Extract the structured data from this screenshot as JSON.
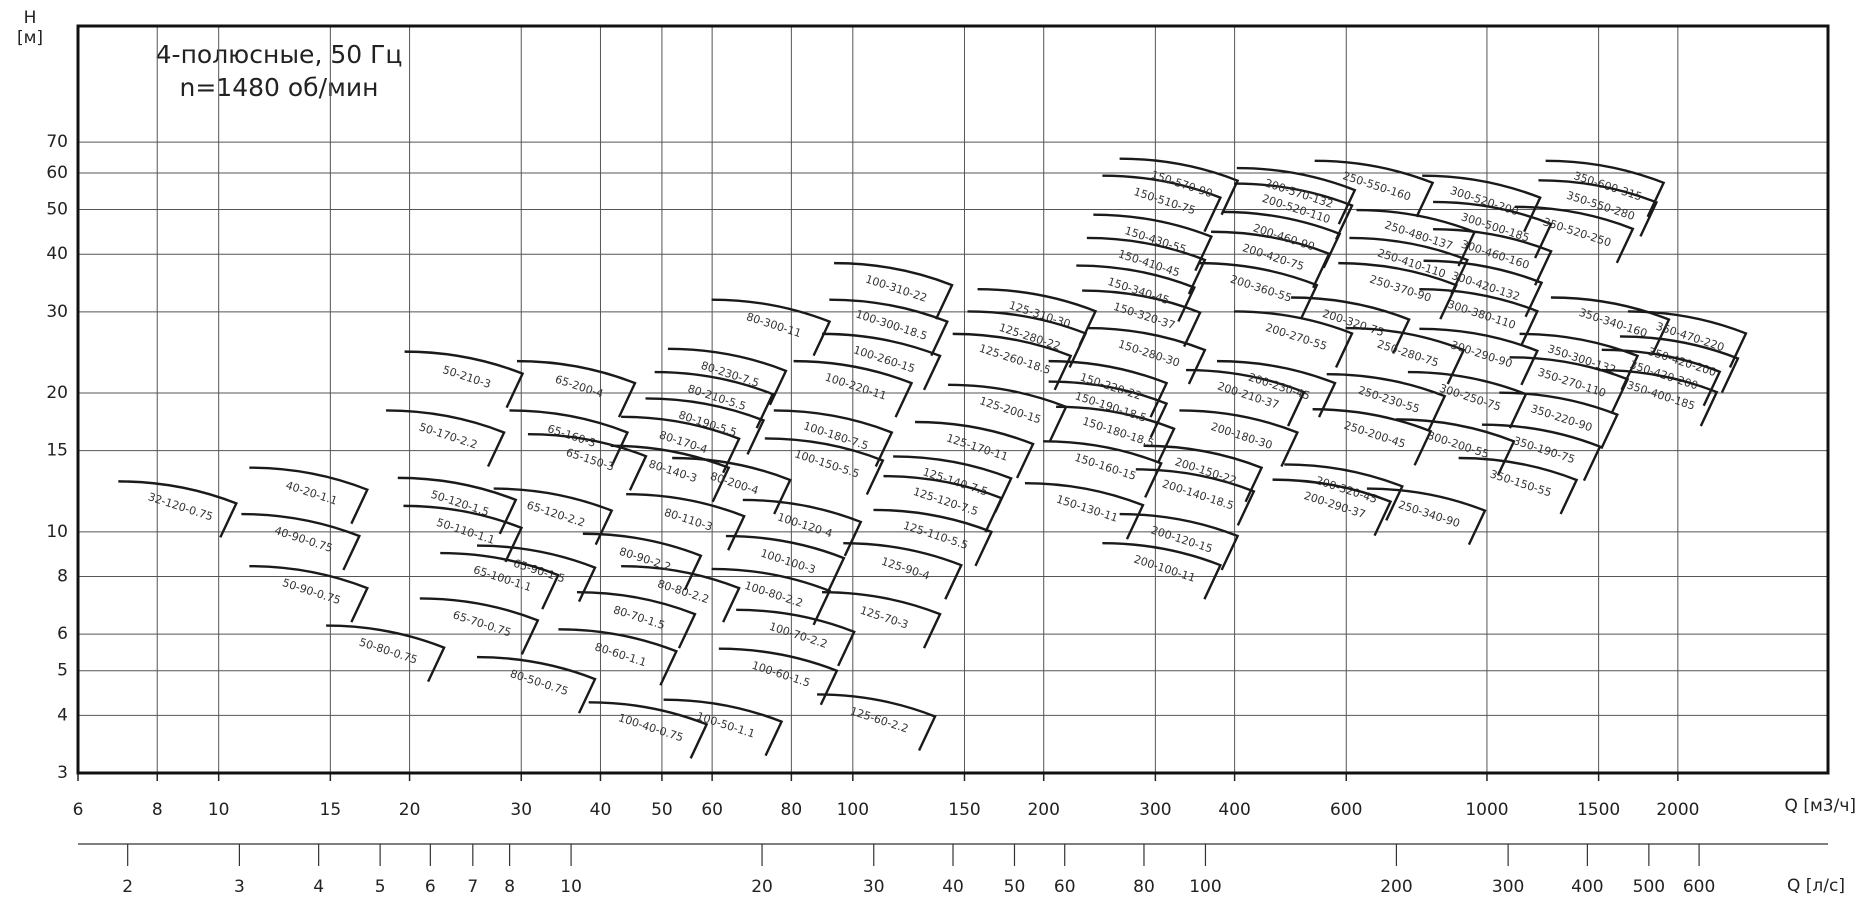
{
  "chart_data": {
    "type": "pump-fields",
    "title": [
      "4-полюсные, 50 Гц",
      "n=1480 об/мин"
    ],
    "y_label": [
      "H",
      "[м]"
    ],
    "x_label": "Q [м3/ч]",
    "x2_label": "Q [л/с]",
    "xscale": "log",
    "yscale": "log",
    "grid": true,
    "color": "#1a1a1a",
    "xlim": [
      6,
      3450
    ],
    "xticks": [
      6,
      8,
      10,
      15,
      20,
      30,
      40,
      50,
      60,
      80,
      100,
      150,
      200,
      300,
      400,
      600,
      1000,
      1500,
      2000
    ],
    "ylim": [
      3,
      125
    ],
    "yticks": [
      3,
      4,
      5,
      6,
      8,
      10,
      15,
      20,
      30,
      40,
      50,
      60,
      70
    ],
    "x2lim": [
      1.67,
      958
    ],
    "x2ticks": [
      2,
      3,
      4,
      5,
      6,
      7,
      8,
      10,
      20,
      30,
      40,
      50,
      60,
      80,
      100,
      200,
      300,
      400,
      500,
      600
    ],
    "fields": [
      {
        "label": "32-120-0.75",
        "q": 8.7,
        "h": 11.3
      },
      {
        "label": "40-20-1.1",
        "q": 14,
        "h": 12.1
      },
      {
        "label": "40-90-0.75",
        "q": 13.6,
        "h": 9.6
      },
      {
        "label": "50-90-0.75",
        "q": 14,
        "h": 7.4
      },
      {
        "label": "50-80-0.75",
        "q": 18.5,
        "h": 5.5
      },
      {
        "label": "50-210-3",
        "q": 24.6,
        "h": 21.6
      },
      {
        "label": "65-200-4",
        "q": 37,
        "h": 20.6
      },
      {
        "label": "50-170-2.2",
        "q": 23,
        "h": 16.1
      },
      {
        "label": "65-160-3",
        "q": 36,
        "h": 16.1
      },
      {
        "label": "65-150-3",
        "q": 38.5,
        "h": 14.3
      },
      {
        "label": "50-120-1.5",
        "q": 24,
        "h": 11.5
      },
      {
        "label": "65-120-2.2",
        "q": 34,
        "h": 10.9
      },
      {
        "label": "50-110-1.1",
        "q": 24.5,
        "h": 10
      },
      {
        "label": "65-90-1.5",
        "q": 32,
        "h": 8.2
      },
      {
        "label": "65-100-1.1",
        "q": 28,
        "h": 7.9
      },
      {
        "label": "65-70-0.75",
        "q": 26,
        "h": 6.3
      },
      {
        "label": "80-50-0.75",
        "q": 32,
        "h": 4.7
      },
      {
        "label": "80-60-1.1",
        "q": 43,
        "h": 5.4
      },
      {
        "label": "80-70-1.5",
        "q": 46,
        "h": 6.5
      },
      {
        "label": "80-80-2.2",
        "q": 54,
        "h": 7.4
      },
      {
        "label": "80-90-2.2",
        "q": 47,
        "h": 8.7
      },
      {
        "label": "80-110-3",
        "q": 55,
        "h": 10.6
      },
      {
        "label": "80-140-3",
        "q": 52,
        "h": 13.5
      },
      {
        "label": "80-170-4",
        "q": 54,
        "h": 15.6
      },
      {
        "label": "80-190-5.5",
        "q": 59,
        "h": 17.1
      },
      {
        "label": "80-210-5.5",
        "q": 61,
        "h": 19.5
      },
      {
        "label": "80-230-7.5",
        "q": 64,
        "h": 21.9
      },
      {
        "label": "80-300-11",
        "q": 75,
        "h": 28
      },
      {
        "label": "80-200-4",
        "q": 65,
        "h": 12.7
      },
      {
        "label": "100-40-0.75",
        "q": 48,
        "h": 3.75
      },
      {
        "label": "100-50-1.1",
        "q": 63,
        "h": 3.8
      },
      {
        "label": "100-60-1.5",
        "q": 77,
        "h": 4.9
      },
      {
        "label": "100-70-2.2",
        "q": 82,
        "h": 5.95
      },
      {
        "label": "100-80-2.2",
        "q": 75,
        "h": 7.3
      },
      {
        "label": "100-100-3",
        "q": 79,
        "h": 8.6
      },
      {
        "label": "100-120-4",
        "q": 84,
        "h": 10.3
      },
      {
        "label": "100-150-5.5",
        "q": 91,
        "h": 14
      },
      {
        "label": "100-180-7.5",
        "q": 94,
        "h": 16.1
      },
      {
        "label": "100-220-11",
        "q": 101,
        "h": 20.6
      },
      {
        "label": "100-260-15",
        "q": 112,
        "h": 23.6
      },
      {
        "label": "100-300-18.5",
        "q": 115,
        "h": 28
      },
      {
        "label": "100-310-22",
        "q": 117,
        "h": 33.6
      },
      {
        "label": "125-310-30",
        "q": 197,
        "h": 29.5
      },
      {
        "label": "125-280-22",
        "q": 190,
        "h": 26.4
      },
      {
        "label": "125-260-18.5",
        "q": 180,
        "h": 23.6
      },
      {
        "label": "125-200-15",
        "q": 177,
        "h": 18.3
      },
      {
        "label": "125-170-11",
        "q": 157,
        "h": 15.2
      },
      {
        "label": "125-140-7.5",
        "q": 145,
        "h": 12.8
      },
      {
        "label": "125-120-7.5",
        "q": 140,
        "h": 11.6
      },
      {
        "label": "125-110-5.5",
        "q": 135,
        "h": 9.8
      },
      {
        "label": "125-90-4",
        "q": 121,
        "h": 8.3
      },
      {
        "label": "125-70-3",
        "q": 112,
        "h": 6.5
      },
      {
        "label": "125-60-2.2",
        "q": 110,
        "h": 3.9
      },
      {
        "label": "150-130-11",
        "q": 234,
        "h": 11.2
      },
      {
        "label": "150-160-15",
        "q": 250,
        "h": 13.8
      },
      {
        "label": "150-180-18.5",
        "q": 262,
        "h": 16.4
      },
      {
        "label": "150-190-18.5",
        "q": 255,
        "h": 18.6
      },
      {
        "label": "150-220-22",
        "q": 255,
        "h": 20.6
      },
      {
        "label": "150-280-30",
        "q": 293,
        "h": 24.3
      },
      {
        "label": "150-320-37",
        "q": 288,
        "h": 29.3
      },
      {
        "label": "150-340-45",
        "q": 282,
        "h": 33.2
      },
      {
        "label": "150-410-45",
        "q": 293,
        "h": 38.1
      },
      {
        "label": "150-430-55",
        "q": 300,
        "h": 42.8
      },
      {
        "label": "150-510-75",
        "q": 310,
        "h": 52
      },
      {
        "label": "150-570-90",
        "q": 330,
        "h": 56.6
      },
      {
        "label": "200-100-11",
        "q": 310,
        "h": 8.3
      },
      {
        "label": "200-120-15",
        "q": 330,
        "h": 9.6
      },
      {
        "label": "200-140-18.5",
        "q": 350,
        "h": 12
      },
      {
        "label": "200-150-22",
        "q": 360,
        "h": 13.5
      },
      {
        "label": "200-180-30",
        "q": 410,
        "h": 16.1
      },
      {
        "label": "200-210-37",
        "q": 420,
        "h": 19.7
      },
      {
        "label": "200-230-45",
        "q": 470,
        "h": 20.6
      },
      {
        "label": "200-270-55",
        "q": 500,
        "h": 26.4
      },
      {
        "label": "200-320-75",
        "q": 615,
        "h": 28.3
      },
      {
        "label": "200-360-55",
        "q": 440,
        "h": 33.6
      },
      {
        "label": "200-420-75",
        "q": 460,
        "h": 39.3
      },
      {
        "label": "200-460-90",
        "q": 478,
        "h": 43.4
      },
      {
        "label": "200-520-110",
        "q": 500,
        "h": 50
      },
      {
        "label": "200-570-132",
        "q": 505,
        "h": 54
      },
      {
        "label": "200-320-45",
        "q": 600,
        "h": 12.3
      },
      {
        "label": "200-290-37",
        "q": 575,
        "h": 11.4
      },
      {
        "label": "250-550-160",
        "q": 670,
        "h": 56
      },
      {
        "label": "250-480-137",
        "q": 780,
        "h": 43.8
      },
      {
        "label": "250-410-110",
        "q": 760,
        "h": 38.1
      },
      {
        "label": "250-370-90",
        "q": 730,
        "h": 33.6
      },
      {
        "label": "250-280-75",
        "q": 750,
        "h": 24.3
      },
      {
        "label": "250-230-55",
        "q": 700,
        "h": 19.3
      },
      {
        "label": "250-200-45",
        "q": 665,
        "h": 16.2
      },
      {
        "label": "250-340-90",
        "q": 810,
        "h": 10.9
      },
      {
        "label": "300-520-200",
        "q": 990,
        "h": 52
      },
      {
        "label": "300-500-185",
        "q": 1030,
        "h": 45.6
      },
      {
        "label": "300-460-160",
        "q": 1030,
        "h": 39.8
      },
      {
        "label": "300-420-132",
        "q": 995,
        "h": 34
      },
      {
        "label": "300-380-110",
        "q": 980,
        "h": 29.5
      },
      {
        "label": "300-290-90",
        "q": 980,
        "h": 24.2
      },
      {
        "label": "300-250-75",
        "q": 940,
        "h": 19.5
      },
      {
        "label": "300-200-55",
        "q": 900,
        "h": 15.4
      },
      {
        "label": "350-600-315",
        "q": 1550,
        "h": 56
      },
      {
        "label": "350-550-280",
        "q": 1510,
        "h": 50.8
      },
      {
        "label": "350-520-250",
        "q": 1386,
        "h": 44.5
      },
      {
        "label": "350-340-160",
        "q": 1580,
        "h": 28.3
      },
      {
        "label": "350-300-132",
        "q": 1410,
        "h": 23.6
      },
      {
        "label": "350-270-110",
        "q": 1360,
        "h": 21
      },
      {
        "label": "350-220-90",
        "q": 1310,
        "h": 17.6
      },
      {
        "label": "350-190-75",
        "q": 1230,
        "h": 15
      },
      {
        "label": "350-150-55",
        "q": 1130,
        "h": 12.7
      },
      {
        "label": "350-470-220",
        "q": 2090,
        "h": 26.4
      },
      {
        "label": "350-420-200",
        "q": 2030,
        "h": 23.3
      },
      {
        "label": "350-420-200",
        "q": 1900,
        "h": 21.8
      },
      {
        "label": "350-400-185",
        "q": 1880,
        "h": 19.7
      }
    ]
  }
}
